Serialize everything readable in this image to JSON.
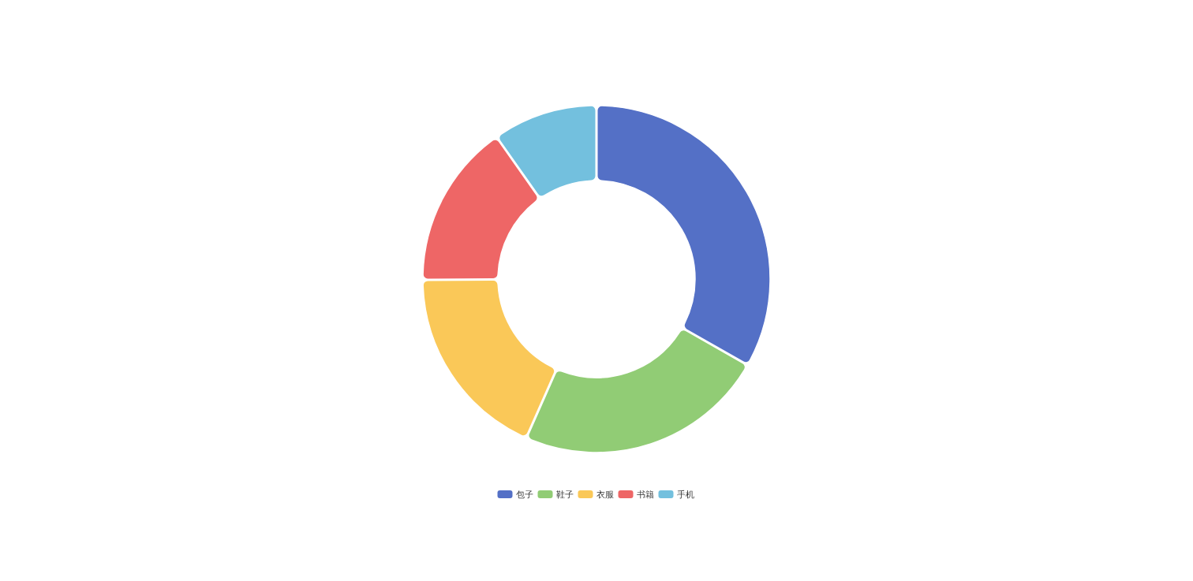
{
  "chart_data": {
    "type": "donut",
    "categories": [
      "包子",
      "鞋子",
      "衣服",
      "书籍",
      "手机"
    ],
    "values": [
      33.3,
      23.4,
      18.3,
      15.3,
      9.7
    ],
    "colors": [
      "#5470c6",
      "#91cc75",
      "#fac858",
      "#ee6666",
      "#73c0de"
    ],
    "legend": "bottom"
  }
}
